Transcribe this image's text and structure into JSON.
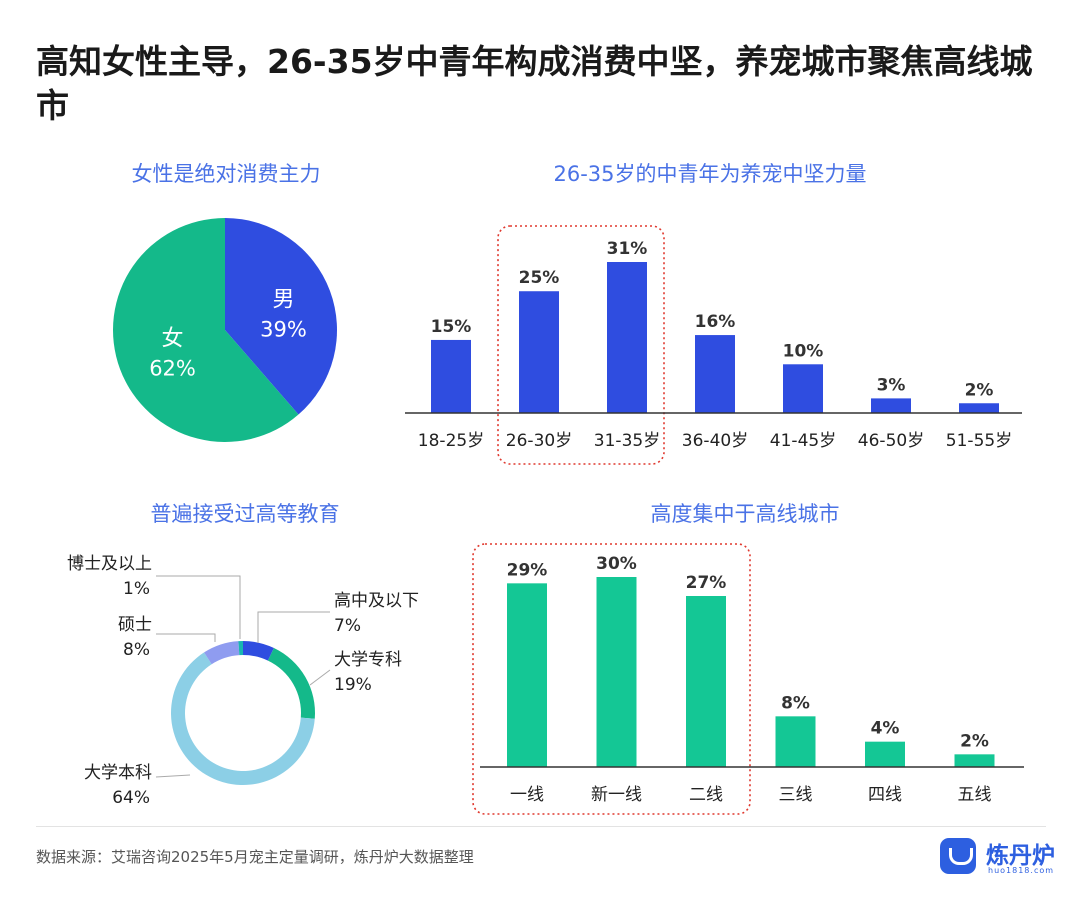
{
  "title": "高知女性主导，26-35岁中青年构成消费中坚，养宠城市聚焦高线城市",
  "chart_data": [
    {
      "type": "pie",
      "title": "女性是绝对消费主力",
      "slices": [
        {
          "label": "男",
          "value": 39,
          "value_label": "39%",
          "color": "#2f4de0"
        },
        {
          "label": "女",
          "value": 62,
          "value_label": "62%",
          "color": "#14b98a"
        }
      ]
    },
    {
      "type": "bar",
      "title": "26-35岁的中青年为养宠中坚力量",
      "categories": [
        "18-25岁",
        "26-30岁",
        "31-35岁",
        "36-40岁",
        "41-45岁",
        "46-50岁",
        "51-55岁"
      ],
      "values": [
        15,
        25,
        31,
        16,
        10,
        3,
        2
      ],
      "value_labels": [
        "15%",
        "25%",
        "31%",
        "16%",
        "10%",
        "3%",
        "2%"
      ],
      "color": "#2f4de0",
      "highlight": [
        "26-30岁",
        "31-35岁"
      ],
      "ylim": [
        0,
        31
      ]
    },
    {
      "type": "pie",
      "title": "普遍接受过高等教育",
      "slices": [
        {
          "label": "高中及以下",
          "value": 7,
          "value_label": "7%",
          "color": "#2f4de0"
        },
        {
          "label": "大学专科",
          "value": 19,
          "value_label": "19%",
          "color": "#14b98a"
        },
        {
          "label": "大学本科",
          "value": 64,
          "value_label": "64%",
          "color": "#8ccfe6"
        },
        {
          "label": "硕士",
          "value": 8,
          "value_label": "8%",
          "color": "#8f9cf0"
        },
        {
          "label": "博士及以上",
          "value": 1,
          "value_label": "1%",
          "color": "#19b7b0"
        }
      ]
    },
    {
      "type": "bar",
      "title": "高度集中于高线城市",
      "categories": [
        "一线",
        "新一线",
        "二线",
        "三线",
        "四线",
        "五线"
      ],
      "values": [
        29,
        30,
        27,
        8,
        4,
        2
      ],
      "value_labels": [
        "29%",
        "30%",
        "27%",
        "8%",
        "4%",
        "2%"
      ],
      "color": "#14c795",
      "highlight": [
        "一线",
        "新一线",
        "二线"
      ],
      "ylim": [
        0,
        30
      ]
    }
  ],
  "source": "数据来源：艾瑞咨询2025年5月宠主定量调研，炼丹炉大数据整理",
  "brand": {
    "name": "炼丹炉",
    "url": "huo1818.com",
    "mark": "cauldron-icon"
  }
}
